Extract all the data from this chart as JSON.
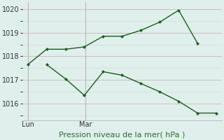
{
  "xlabel": "Pression niveau de la mer( hPa )",
  "bg_color": "#dff0ec",
  "grid_color_major": "#d4b8c0",
  "grid_color_minor": "#e0ccd2",
  "line_color": "#1a5e1a",
  "vline_color": "#666666",
  "line1_x": [
    0,
    1,
    2,
    3,
    4,
    5,
    6,
    7,
    8,
    9
  ],
  "line1_y": [
    1017.65,
    1018.3,
    1018.3,
    1018.4,
    1018.85,
    1018.85,
    1019.1,
    1019.45,
    1019.95,
    1018.55
  ],
  "line2_x": [
    1,
    2,
    3,
    4,
    5,
    6,
    7,
    8,
    9,
    10
  ],
  "line2_y": [
    1017.65,
    1017.05,
    1016.35,
    1017.35,
    1017.2,
    1016.85,
    1016.5,
    1016.1,
    1015.6,
    1015.6
  ],
  "vline_positions": [
    0,
    3.05
  ],
  "vline_labels": [
    "Lun",
    "Mar"
  ],
  "xlim": [
    -0.3,
    10.3
  ],
  "ylim": [
    1015.3,
    1020.3
  ],
  "yticks": [
    1016,
    1017,
    1018,
    1019,
    1020
  ]
}
